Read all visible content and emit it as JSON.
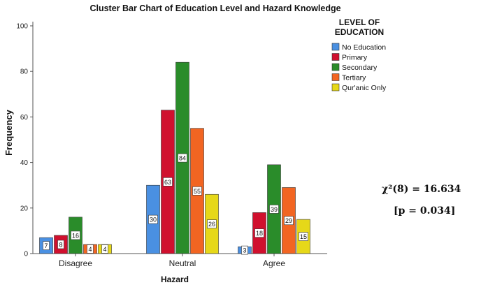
{
  "chart_data": {
    "type": "bar",
    "title": "Cluster Bar Chart of Education Level and Hazard Knowledge",
    "xlabel": "Hazard",
    "ylabel": "Frequency",
    "ylim": [
      0,
      100
    ],
    "yticks": [
      0,
      20,
      40,
      60,
      80,
      100
    ],
    "grid": false,
    "legend_title": "LEVEL OF EDUCATION",
    "legend_placement": "top-right",
    "categories": [
      "Disagree",
      "Neutral",
      "Agree"
    ],
    "series": [
      {
        "name": "No Education",
        "color": "#4a90e2",
        "values": [
          7,
          30,
          3
        ]
      },
      {
        "name": "Primary",
        "color": "#d0102e",
        "values": [
          8,
          63,
          18
        ]
      },
      {
        "name": "Secondary",
        "color": "#2a8c2a",
        "values": [
          16,
          84,
          39
        ]
      },
      {
        "name": "Tertiary",
        "color": "#f26522",
        "values": [
          4,
          55,
          29
        ]
      },
      {
        "name": "Qur'anic Only",
        "color": "#e6d819",
        "values": [
          4,
          26,
          15
        ]
      }
    ]
  },
  "stats": {
    "chi_square": "χ²(8) = 16.634",
    "p_value": "[p = 0.034]"
  }
}
